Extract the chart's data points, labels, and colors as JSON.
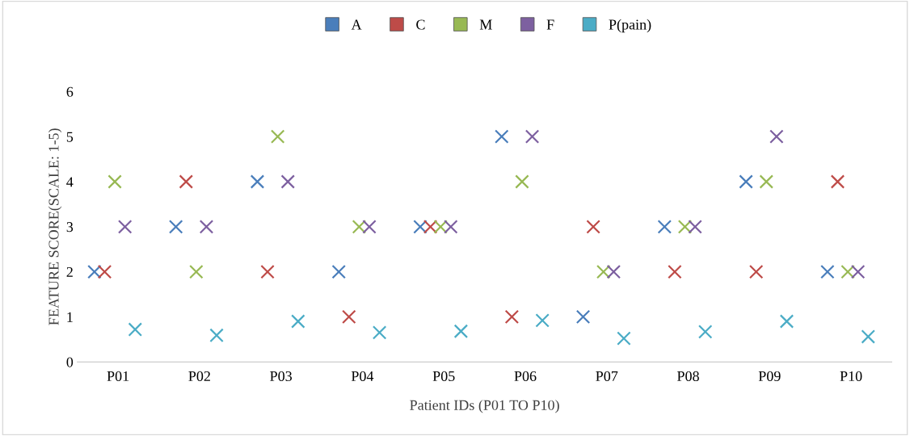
{
  "chart_data": {
    "type": "scatter",
    "xlabel": "Patient IDs (P01 TO P10)",
    "ylabel": "FEATURE SCORE(SCALE: 1-5)",
    "categories": [
      "P01",
      "P02",
      "P03",
      "P04",
      "P05",
      "P06",
      "P07",
      "P08",
      "P09",
      "P10"
    ],
    "series": [
      {
        "name": "A",
        "color": "#4a7ebb",
        "values": [
          2,
          3,
          4,
          2,
          3,
          5,
          1,
          3,
          4,
          2
        ]
      },
      {
        "name": "C",
        "color": "#be4b48",
        "values": [
          2,
          4,
          2,
          1,
          3,
          1,
          3,
          2,
          2,
          4
        ]
      },
      {
        "name": "M",
        "color": "#98b954",
        "values": [
          4,
          2,
          5,
          3,
          3,
          4,
          2,
          3,
          4,
          2
        ]
      },
      {
        "name": "F",
        "color": "#7d60a0",
        "values": [
          3,
          3,
          4,
          3,
          3,
          5,
          2,
          3,
          5,
          2
        ]
      },
      {
        "name": "P(pain)",
        "color": "#4bacc6",
        "values": [
          0.72,
          0.59,
          0.9,
          0.65,
          0.68,
          0.92,
          0.52,
          0.67,
          0.9,
          0.56
        ]
      }
    ],
    "ylim": [
      0,
      6
    ],
    "yticks": [
      0,
      1,
      2,
      3,
      4,
      5,
      6
    ],
    "marker": "cross",
    "legend": "top",
    "grid": false
  }
}
